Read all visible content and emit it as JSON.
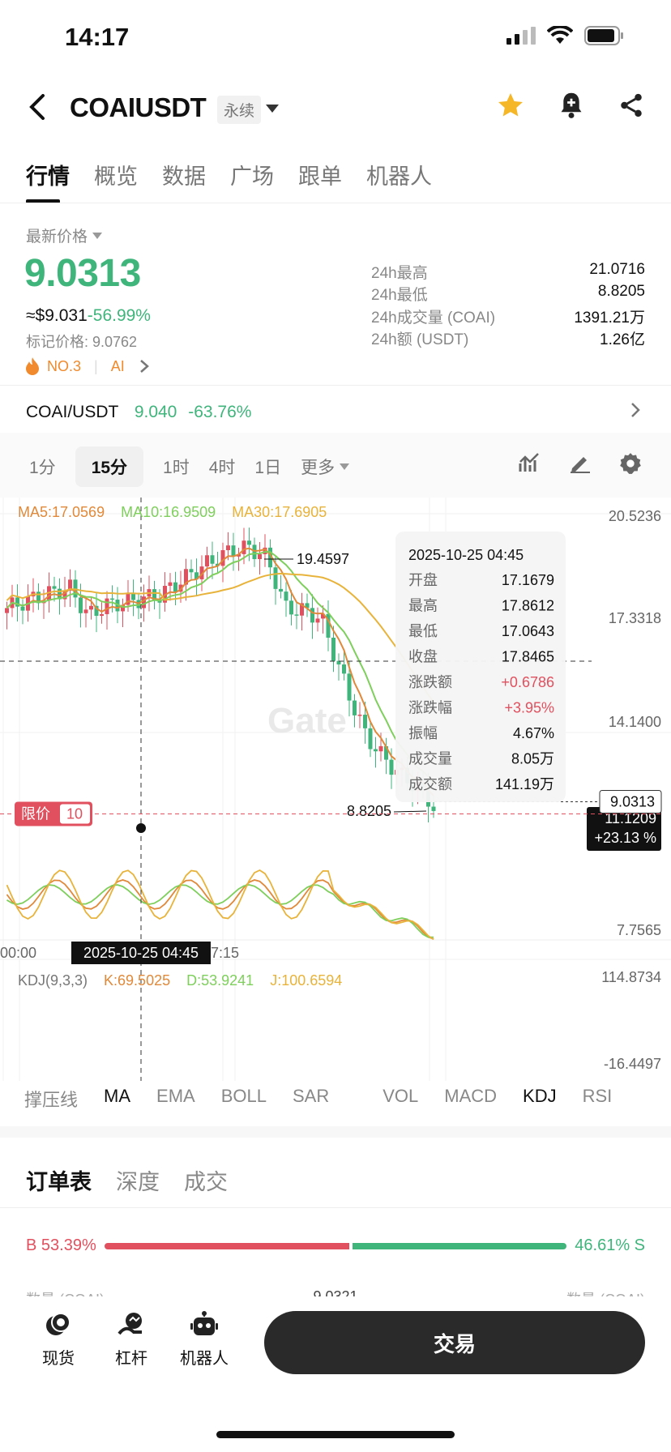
{
  "status": {
    "time": "14:17"
  },
  "header": {
    "title": "COAIUSDT",
    "tag": "永续"
  },
  "tabs": [
    "行情",
    "概览",
    "数据",
    "广场",
    "跟单",
    "机器人"
  ],
  "price": {
    "label": "最新价格",
    "last": "9.0313",
    "usd": "≈$9.031",
    "change": "-56.99%",
    "mark": "标记价格: 9.0762",
    "rank": "NO.3",
    "category": "AI"
  },
  "stats": [
    {
      "label": "24h最高",
      "value": "21.0716"
    },
    {
      "label": "24h最低",
      "value": "8.8205"
    },
    {
      "label": "24h成交量 (COAI)",
      "value": "1391.21万"
    },
    {
      "label": "24h额 (USDT)",
      "value": "1.26亿"
    }
  ],
  "ref": {
    "pair": "COAI/USDT",
    "price": "9.040",
    "change": "-63.76%"
  },
  "timeframes": [
    "1分",
    "15分",
    "1时",
    "4时",
    "1日",
    "更多"
  ],
  "selected_timeframe": "15分",
  "ma": {
    "ma5": "MA5:17.0569",
    "ma10": "MA10:16.9509",
    "ma30": "MA30:17.6905"
  },
  "axis": {
    "y1": "20.5236",
    "y2": "17.3318",
    "y3": "14.1400",
    "y4": "7.7565",
    "kdj_top": "114.8734",
    "kdj_bottom": "-16.4497",
    "t_left": "00:00",
    "t_mid": "7:15"
  },
  "chart_labels": {
    "high": "19.4597",
    "low": "8.8205",
    "cross_price": "11.1209",
    "cross_pct": "+23.13 %",
    "cross_time": "2025-10-25 04:45",
    "current": "9.0313",
    "limit_label": "限价",
    "limit_qty": "10",
    "watermark": "Gate"
  },
  "tooltip": {
    "time": "2025-10-25 04:45",
    "rows": [
      {
        "k": "开盘",
        "v": "17.1679"
      },
      {
        "k": "最高",
        "v": "17.8612"
      },
      {
        "k": "最低",
        "v": "17.0643"
      },
      {
        "k": "收盘",
        "v": "17.8465"
      },
      {
        "k": "涨跌额",
        "v": "+0.6786"
      },
      {
        "k": "涨跌幅",
        "v": "+3.95%"
      },
      {
        "k": "振幅",
        "v": "4.67%"
      },
      {
        "k": "成交量",
        "v": "8.05万"
      },
      {
        "k": "成交额",
        "v": "141.19万"
      }
    ]
  },
  "kdj": {
    "name": "KDJ(9,3,3)",
    "k": "K:69.5025",
    "d": "D:53.9241",
    "j": "J:100.6594"
  },
  "indicators": [
    "撑压线",
    "MA",
    "EMA",
    "BOLL",
    "SAR",
    "VOL",
    "MACD",
    "KDJ",
    "RSI"
  ],
  "orderbook": {
    "tabs": [
      "订单表",
      "深度",
      "成交"
    ],
    "buy": "B 53.39%",
    "sell": "46.61% S",
    "buy_ratio": 53.39,
    "col_left": "数量 (COAI)",
    "col_mid": "9.0321",
    "col_right": "数量 (COAI)"
  },
  "bottom": {
    "spot": "现货",
    "margin": "杠杆",
    "bot": "机器人",
    "trade": "交易"
  },
  "colors": {
    "up": "#e0505e",
    "down": "#3fb57c",
    "ma5": "#e0893a",
    "ma10": "#7ecf5c",
    "ma30": "#e8b33a"
  }
}
